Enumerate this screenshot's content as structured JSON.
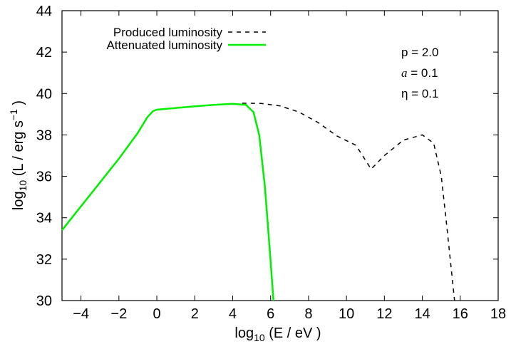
{
  "chart_data": {
    "type": "line",
    "xlabel": {
      "base": "log",
      "sub": "10",
      "rest": " (E / eV )"
    },
    "ylabel": {
      "base": "log",
      "sub": "10",
      "pre": " (L / erg s",
      "sup": "−1",
      "post": " )"
    },
    "xlim": [
      -5,
      18
    ],
    "ylim": [
      30,
      44
    ],
    "xticks": [
      -4,
      -2,
      0,
      2,
      4,
      6,
      8,
      10,
      12,
      14,
      16,
      18
    ],
    "yticks": [
      30,
      32,
      34,
      36,
      38,
      40,
      42,
      44
    ],
    "grid": false,
    "legend_position": "top-left",
    "annotations": [
      {
        "label": "p",
        "value": "= 2.0"
      },
      {
        "label": "a",
        "value": "= 0.1"
      },
      {
        "label": "η",
        "value": "= 0.1"
      }
    ],
    "series": [
      {
        "name": "Produced luminosity",
        "style": "dashed",
        "color": "#000000",
        "points": [
          [
            4.5,
            39.53
          ],
          [
            5.5,
            39.52
          ],
          [
            6.5,
            39.4
          ],
          [
            7.5,
            39.1
          ],
          [
            8.5,
            38.6
          ],
          [
            9.5,
            37.95
          ],
          [
            10.5,
            37.5
          ],
          [
            11.3,
            36.35
          ],
          [
            12.0,
            37.0
          ],
          [
            13.0,
            37.75
          ],
          [
            14.0,
            38.0
          ],
          [
            14.6,
            37.6
          ],
          [
            15.0,
            36.0
          ],
          [
            15.3,
            33.5
          ],
          [
            15.7,
            30.0
          ]
        ]
      },
      {
        "name": "Attenuated luminosity",
        "style": "solid",
        "color": "#00ee00",
        "points": [
          [
            -5.0,
            33.4
          ],
          [
            -4.0,
            34.55
          ],
          [
            -3.0,
            35.7
          ],
          [
            -2.0,
            36.85
          ],
          [
            -1.0,
            38.1
          ],
          [
            -0.5,
            38.85
          ],
          [
            -0.2,
            39.15
          ],
          [
            0.0,
            39.22
          ],
          [
            1.0,
            39.3
          ],
          [
            2.0,
            39.38
          ],
          [
            3.0,
            39.45
          ],
          [
            4.0,
            39.5
          ],
          [
            4.7,
            39.45
          ],
          [
            5.1,
            39.1
          ],
          [
            5.4,
            38.0
          ],
          [
            5.7,
            35.5
          ],
          [
            5.95,
            32.5
          ],
          [
            6.15,
            30.0
          ]
        ]
      }
    ]
  }
}
